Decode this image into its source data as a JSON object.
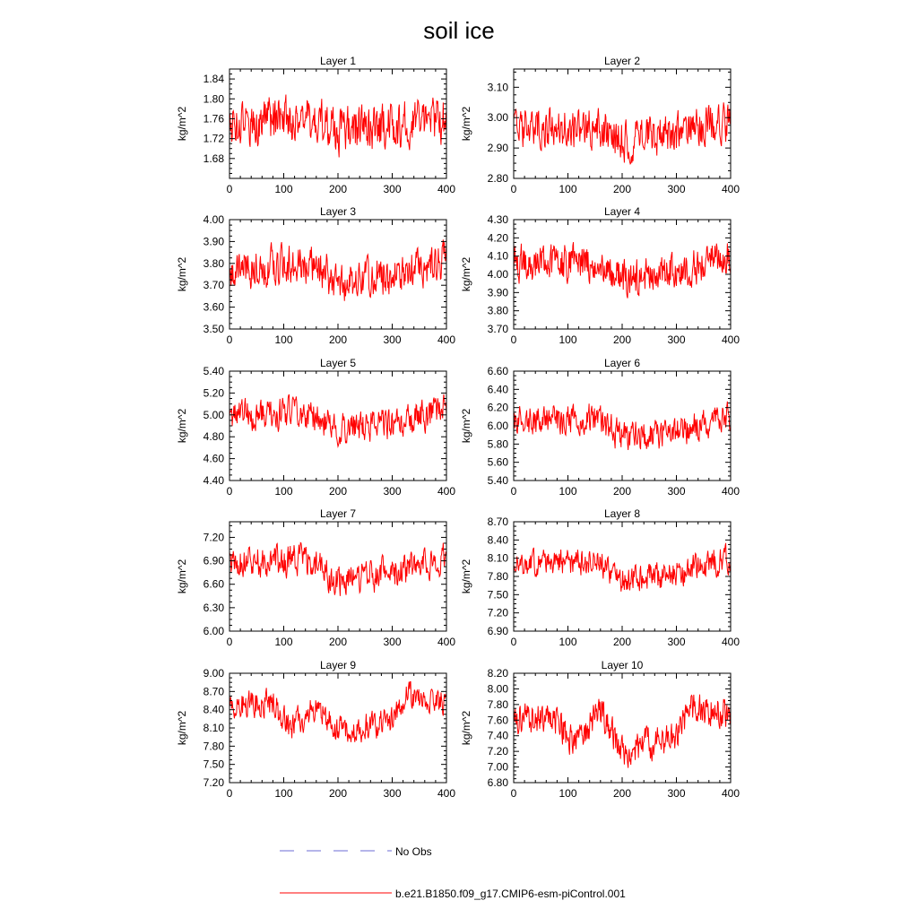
{
  "title": "soil ice",
  "legend": {
    "placement": "bottom",
    "entries": [
      {
        "label": "No Obs",
        "color": "#6b6bd6",
        "style": "dashed"
      },
      {
        "label": "b.e21.B1850.f09_g17.CMIP6-esm-piControl.001",
        "color": "#ff0000",
        "style": "solid"
      }
    ]
  },
  "colors": {
    "series": "#ff0000",
    "obs": "#6b6bd6"
  },
  "chart_data": [
    {
      "type": "line",
      "title": "Layer 1",
      "ylabel": "kg/m^2",
      "xlim": [
        0,
        400
      ],
      "ylim": [
        1.64,
        1.86
      ],
      "xticks": [
        0,
        100,
        200,
        300,
        400
      ],
      "yticks": [
        "1.68",
        "1.72",
        "1.76",
        "1.80",
        "1.84"
      ],
      "series": [
        {
          "mean": 1.75,
          "amp": 0.045,
          "seed": 1,
          "trend": [
            [
              0,
              0.0
            ],
            [
              150,
              0.01
            ],
            [
              200,
              -0.015
            ],
            [
              300,
              -0.005
            ],
            [
              400,
              0.01
            ]
          ]
        }
      ]
    },
    {
      "type": "line",
      "title": "Layer 2",
      "ylabel": "kg/m^2",
      "xlim": [
        0,
        400
      ],
      "ylim": [
        2.8,
        3.16
      ],
      "xticks": [
        0,
        100,
        200,
        300,
        400
      ],
      "yticks": [
        "2.80",
        "2.90",
        "3.00",
        "3.10"
      ],
      "series": [
        {
          "mean": 2.96,
          "amp": 0.065,
          "seed": 2,
          "trend": [
            [
              0,
              0.0
            ],
            [
              150,
              0.01
            ],
            [
              200,
              -0.04
            ],
            [
              300,
              -0.01
            ],
            [
              400,
              0.03
            ]
          ]
        }
      ]
    },
    {
      "type": "line",
      "title": "Layer 3",
      "ylabel": "kg/m^2",
      "xlim": [
        0,
        400
      ],
      "ylim": [
        3.5,
        4.0
      ],
      "xticks": [
        0,
        100,
        200,
        300,
        400
      ],
      "yticks": [
        "3.50",
        "3.60",
        "3.70",
        "3.80",
        "3.90",
        "4.00"
      ],
      "series": [
        {
          "mean": 3.77,
          "amp": 0.09,
          "seed": 3,
          "trend": [
            [
              0,
              0.0
            ],
            [
              150,
              0.03
            ],
            [
              200,
              -0.06
            ],
            [
              300,
              -0.02
            ],
            [
              400,
              0.04
            ]
          ]
        }
      ]
    },
    {
      "type": "line",
      "title": "Layer 4",
      "ylabel": "kg/m^2",
      "xlim": [
        0,
        400
      ],
      "ylim": [
        3.7,
        4.3
      ],
      "xticks": [
        0,
        100,
        200,
        300,
        400
      ],
      "yticks": [
        "3.70",
        "3.80",
        "3.90",
        "4.00",
        "4.10",
        "4.20",
        "4.30"
      ],
      "series": [
        {
          "mean": 4.04,
          "amp": 0.1,
          "seed": 4,
          "trend": [
            [
              0,
              0.02
            ],
            [
              150,
              0.02
            ],
            [
              200,
              -0.07
            ],
            [
              300,
              -0.02
            ],
            [
              400,
              0.06
            ]
          ]
        }
      ]
    },
    {
      "type": "line",
      "title": "Layer 5",
      "ylabel": "kg/m^2",
      "xlim": [
        0,
        400
      ],
      "ylim": [
        4.4,
        5.4
      ],
      "xticks": [
        0,
        100,
        200,
        300,
        400
      ],
      "yticks": [
        "4.40",
        "4.60",
        "4.80",
        "5.00",
        "5.20",
        "5.40"
      ],
      "series": [
        {
          "mean": 4.97,
          "amp": 0.14,
          "seed": 5,
          "trend": [
            [
              0,
              0.03
            ],
            [
              150,
              0.05
            ],
            [
              200,
              -0.1
            ],
            [
              300,
              -0.05
            ],
            [
              400,
              0.08
            ]
          ]
        }
      ]
    },
    {
      "type": "line",
      "title": "Layer 6",
      "ylabel": "kg/m^2",
      "xlim": [
        0,
        400
      ],
      "ylim": [
        5.4,
        6.6
      ],
      "xticks": [
        0,
        100,
        200,
        300,
        400
      ],
      "yticks": [
        "5.40",
        "5.60",
        "5.80",
        "6.00",
        "6.20",
        "6.40",
        "6.60"
      ],
      "series": [
        {
          "mean": 6.0,
          "amp": 0.16,
          "seed": 6,
          "trend": [
            [
              0,
              0.05
            ],
            [
              150,
              0.08
            ],
            [
              200,
              -0.12
            ],
            [
              300,
              -0.06
            ],
            [
              400,
              0.1
            ]
          ]
        }
      ]
    },
    {
      "type": "line",
      "title": "Layer 7",
      "ylabel": "kg/m^2",
      "xlim": [
        0,
        400
      ],
      "ylim": [
        6.0,
        7.4
      ],
      "xticks": [
        0,
        100,
        200,
        300,
        400
      ],
      "yticks": [
        "6.00",
        "6.30",
        "6.60",
        "6.90",
        "7.20"
      ],
      "series": [
        {
          "mean": 6.82,
          "amp": 0.2,
          "seed": 7,
          "trend": [
            [
              0,
              0.05
            ],
            [
              150,
              0.1
            ],
            [
              200,
              -0.18
            ],
            [
              300,
              -0.08
            ],
            [
              400,
              0.12
            ]
          ]
        }
      ]
    },
    {
      "type": "line",
      "title": "Layer 8",
      "ylabel": "kg/m^2",
      "xlim": [
        0,
        400
      ],
      "ylim": [
        6.9,
        8.7
      ],
      "xticks": [
        0,
        100,
        200,
        300,
        400
      ],
      "yticks": [
        "6.90",
        "7.20",
        "7.50",
        "7.80",
        "8.10",
        "8.40",
        "8.70"
      ],
      "series": [
        {
          "mean": 7.95,
          "amp": 0.22,
          "seed": 8,
          "trend": [
            [
              0,
              0.05
            ],
            [
              150,
              0.12
            ],
            [
              200,
              -0.2
            ],
            [
              300,
              -0.1
            ],
            [
              400,
              0.15
            ]
          ]
        }
      ]
    },
    {
      "type": "line",
      "title": "Layer 9",
      "ylabel": "kg/m^2",
      "xlim": [
        0,
        400
      ],
      "ylim": [
        7.2,
        9.0
      ],
      "xticks": [
        0,
        100,
        200,
        300,
        400
      ],
      "yticks": [
        "7.20",
        "7.50",
        "7.80",
        "8.10",
        "8.40",
        "8.70",
        "9.00"
      ],
      "series": [
        {
          "mean": 8.35,
          "amp": 0.22,
          "seed": 9,
          "trend": [
            [
              0,
              0.1
            ],
            [
              80,
              0.15
            ],
            [
              110,
              -0.25
            ],
            [
              160,
              0.1
            ],
            [
              200,
              -0.3
            ],
            [
              300,
              -0.15
            ],
            [
              330,
              0.3
            ],
            [
              400,
              0.15
            ]
          ]
        }
      ]
    },
    {
      "type": "line",
      "title": "Layer 10",
      "ylabel": "kg/m^2",
      "xlim": [
        0,
        400
      ],
      "ylim": [
        6.8,
        8.2
      ],
      "xticks": [
        0,
        100,
        200,
        300,
        400
      ],
      "yticks": [
        "6.80",
        "7.00",
        "7.20",
        "7.40",
        "7.60",
        "7.80",
        "8.00",
        "8.20"
      ],
      "series": [
        {
          "mean": 7.5,
          "amp": 0.2,
          "seed": 10,
          "trend": [
            [
              0,
              0.15
            ],
            [
              80,
              0.1
            ],
            [
              110,
              -0.2
            ],
            [
              160,
              0.2
            ],
            [
              200,
              -0.3
            ],
            [
              300,
              -0.1
            ],
            [
              330,
              0.25
            ],
            [
              400,
              0.2
            ]
          ]
        }
      ]
    }
  ]
}
